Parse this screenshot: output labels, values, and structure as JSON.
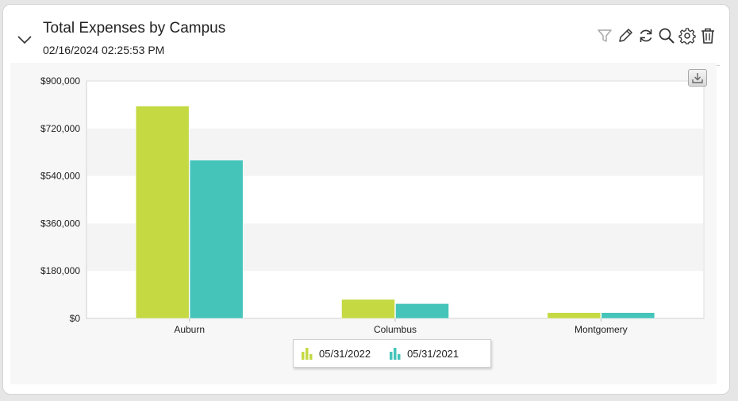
{
  "widget": {
    "title": "Total Expenses by Campus",
    "timestamp": "02/16/2024 02:25:53 PM"
  },
  "toolbar": {
    "icons": [
      "filter-icon",
      "pencil-icon",
      "refresh-icon",
      "search-icon",
      "gear-icon",
      "trash-icon"
    ]
  },
  "colors": {
    "series_2022": "#c5d943",
    "series_2021": "#45c4ba",
    "band": "#f4f4f4",
    "plot_bg": "#ffffff"
  },
  "chart_data": {
    "type": "bar",
    "categories": [
      "Auburn",
      "Columbus",
      "Montgomery"
    ],
    "series": [
      {
        "name": "05/31/2022",
        "values": [
          805000,
          72000,
          22000
        ]
      },
      {
        "name": "05/31/2021",
        "values": [
          600000,
          56000,
          22000
        ]
      }
    ],
    "title": "",
    "xlabel": "",
    "ylabel": "",
    "ylim": [
      0,
      900000
    ],
    "y_ticks": [
      0,
      180000,
      360000,
      540000,
      720000,
      900000
    ],
    "y_tick_labels": [
      "$0",
      "$180,000",
      "$360,000",
      "$540,000",
      "$720,000",
      "$900,000"
    ],
    "legend_position": "bottom-center",
    "grid": "alternating-bands"
  }
}
